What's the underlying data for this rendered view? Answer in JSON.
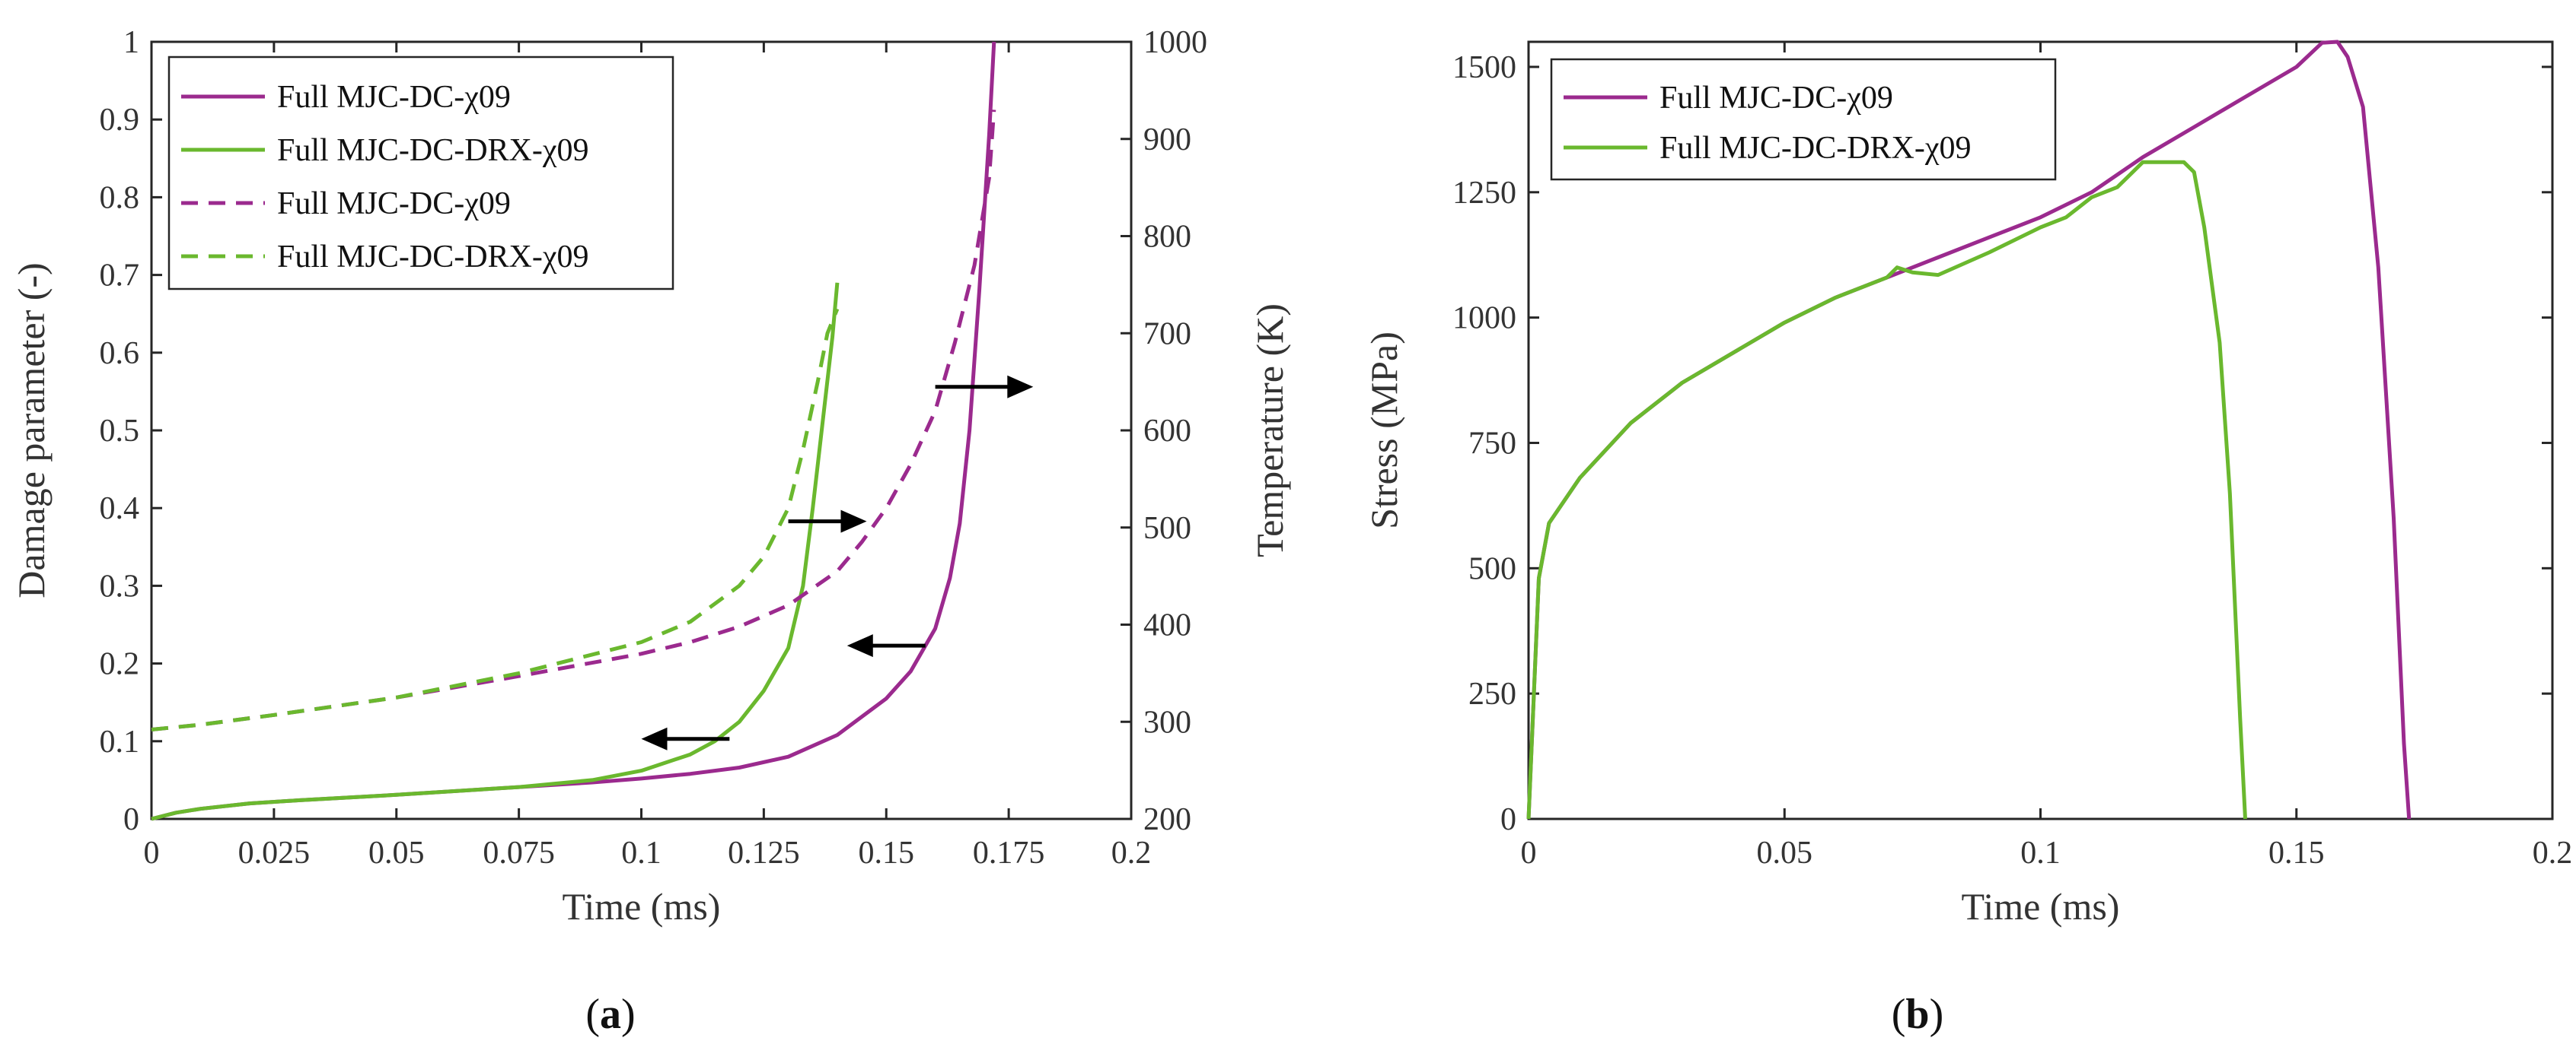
{
  "colors": {
    "purple": "#9b2a8e",
    "green": "#6ab82e",
    "arrow": "#000000",
    "axis": "#262626"
  },
  "chart_data": [
    {
      "panel_label": "(a)",
      "panel_letter": "a",
      "type": "line",
      "xlabel": "Time (ms)",
      "ylabel_left": "Damage parameter (-)",
      "ylabel_right": "Temperature (K)",
      "xlim": [
        0,
        0.2
      ],
      "ylim_left": [
        0,
        1
      ],
      "ylim_right": [
        200,
        1000
      ],
      "xticks": [
        "0",
        "0.025",
        "0.05",
        "0.075",
        "0.1",
        "0.125",
        "0.15",
        "0.175",
        "0.2"
      ],
      "xtick_values": [
        0,
        0.025,
        0.05,
        0.075,
        0.1,
        0.125,
        0.15,
        0.175,
        0.2
      ],
      "yticks_left": [
        "0",
        "0.1",
        "0.2",
        "0.3",
        "0.4",
        "0.5",
        "0.6",
        "0.7",
        "0.8",
        "0.9",
        "1"
      ],
      "ytick_values_left": [
        0,
        0.1,
        0.2,
        0.3,
        0.4,
        0.5,
        0.6,
        0.7,
        0.8,
        0.9,
        1
      ],
      "yticks_right": [
        "200",
        "300",
        "400",
        "500",
        "600",
        "700",
        "800",
        "900",
        "1000"
      ],
      "ytick_values_right": [
        200,
        300,
        400,
        500,
        600,
        700,
        800,
        900,
        1000
      ],
      "legend_position": "top-left",
      "series": [
        {
          "name": "Full MJC-DC-χ09",
          "axis": "left",
          "style": "solid",
          "color": "purple",
          "x": [
            0,
            0.005,
            0.01,
            0.02,
            0.03,
            0.05,
            0.075,
            0.09,
            0.1,
            0.11,
            0.12,
            0.13,
            0.14,
            0.15,
            0.155,
            0.16,
            0.163,
            0.165,
            0.167,
            0.169,
            0.171,
            0.172
          ],
          "y": [
            0,
            0.008,
            0.013,
            0.02,
            0.024,
            0.031,
            0.041,
            0.047,
            0.052,
            0.058,
            0.066,
            0.08,
            0.108,
            0.155,
            0.19,
            0.245,
            0.31,
            0.38,
            0.5,
            0.68,
            0.88,
            1.0
          ]
        },
        {
          "name": "Full MJC-DC-DRX-χ09",
          "axis": "left",
          "style": "solid",
          "color": "green",
          "x": [
            0,
            0.005,
            0.01,
            0.02,
            0.03,
            0.05,
            0.075,
            0.09,
            0.1,
            0.11,
            0.115,
            0.12,
            0.125,
            0.13,
            0.133,
            0.135,
            0.137,
            0.139,
            0.14
          ],
          "y": [
            0,
            0.008,
            0.013,
            0.02,
            0.024,
            0.031,
            0.041,
            0.05,
            0.062,
            0.083,
            0.1,
            0.125,
            0.165,
            0.22,
            0.3,
            0.4,
            0.51,
            0.62,
            0.69
          ]
        },
        {
          "name": "Full MJC-DC-χ09",
          "axis": "right",
          "style": "dashed",
          "color": "purple",
          "x": [
            0,
            0.01,
            0.025,
            0.05,
            0.075,
            0.1,
            0.11,
            0.12,
            0.13,
            0.14,
            0.145,
            0.15,
            0.155,
            0.16,
            0.164,
            0.168,
            0.171,
            0.172
          ],
          "y": [
            292,
            297,
            307,
            325,
            347,
            370,
            382,
            398,
            420,
            455,
            485,
            520,
            565,
            620,
            690,
            770,
            860,
            930
          ]
        },
        {
          "name": "Full MJC-DC-DRX-χ09",
          "axis": "right",
          "style": "dashed",
          "color": "green",
          "x": [
            0,
            0.01,
            0.025,
            0.05,
            0.075,
            0.1,
            0.11,
            0.12,
            0.125,
            0.13,
            0.133,
            0.136,
            0.138,
            0.14
          ],
          "y": [
            292,
            297,
            307,
            325,
            350,
            382,
            403,
            440,
            470,
            520,
            580,
            650,
            700,
            725
          ]
        }
      ],
      "arrows": [
        {
          "x1": 0.118,
          "y1": 0.103,
          "x2": 0.1,
          "y2": 0.103,
          "side": "left"
        },
        {
          "x1": 0.158,
          "y1": 0.223,
          "x2": 0.142,
          "y2": 0.223,
          "side": "left"
        },
        {
          "x1": 0.13,
          "y1": 0.383,
          "x2": 0.146,
          "y2": 0.383,
          "side": "right"
        },
        {
          "x1": 0.16,
          "y1": 0.556,
          "x2": 0.18,
          "y2": 0.556,
          "side": "right"
        }
      ]
    },
    {
      "panel_label": "(b)",
      "panel_letter": "b",
      "type": "line",
      "xlabel": "Time (ms)",
      "ylabel": "Stress (MPa)",
      "xlim": [
        0,
        0.2
      ],
      "ylim": [
        0,
        1550
      ],
      "xticks": [
        "0",
        "0.05",
        "0.1",
        "0.15",
        "0.2"
      ],
      "xtick_values": [
        0,
        0.05,
        0.1,
        0.15,
        0.2
      ],
      "yticks": [
        "0",
        "250",
        "500",
        "750",
        "1000",
        "1250",
        "1500"
      ],
      "ytick_values": [
        0,
        250,
        500,
        750,
        1000,
        1250,
        1500
      ],
      "legend_position": "top-left",
      "series": [
        {
          "name": "Full MJC-DC-χ09",
          "style": "solid",
          "color": "purple",
          "x": [
            0,
            0.002,
            0.004,
            0.01,
            0.02,
            0.03,
            0.04,
            0.05,
            0.06,
            0.07,
            0.08,
            0.09,
            0.1,
            0.11,
            0.12,
            0.13,
            0.14,
            0.15,
            0.155,
            0.158,
            0.16,
            0.163,
            0.166,
            0.169,
            0.171,
            0.172,
            0.172
          ],
          "y": [
            0,
            480,
            590,
            680,
            790,
            870,
            930,
            990,
            1040,
            1080,
            1120,
            1160,
            1200,
            1250,
            1320,
            1380,
            1440,
            1500,
            1548,
            1550,
            1520,
            1420,
            1100,
            600,
            150,
            0,
            0
          ]
        },
        {
          "name": "Full MJC-DC-DRX-χ09",
          "style": "solid",
          "color": "green",
          "x": [
            0,
            0.002,
            0.004,
            0.01,
            0.02,
            0.03,
            0.04,
            0.05,
            0.06,
            0.07,
            0.072,
            0.075,
            0.08,
            0.09,
            0.1,
            0.105,
            0.11,
            0.115,
            0.12,
            0.125,
            0.128,
            0.13,
            0.132,
            0.135,
            0.137,
            0.139,
            0.14
          ],
          "y": [
            0,
            480,
            590,
            680,
            790,
            870,
            930,
            990,
            1040,
            1080,
            1100,
            1090,
            1085,
            1130,
            1180,
            1200,
            1240,
            1260,
            1310,
            1310,
            1310,
            1290,
            1180,
            950,
            650,
            200,
            0
          ]
        }
      ]
    }
  ]
}
